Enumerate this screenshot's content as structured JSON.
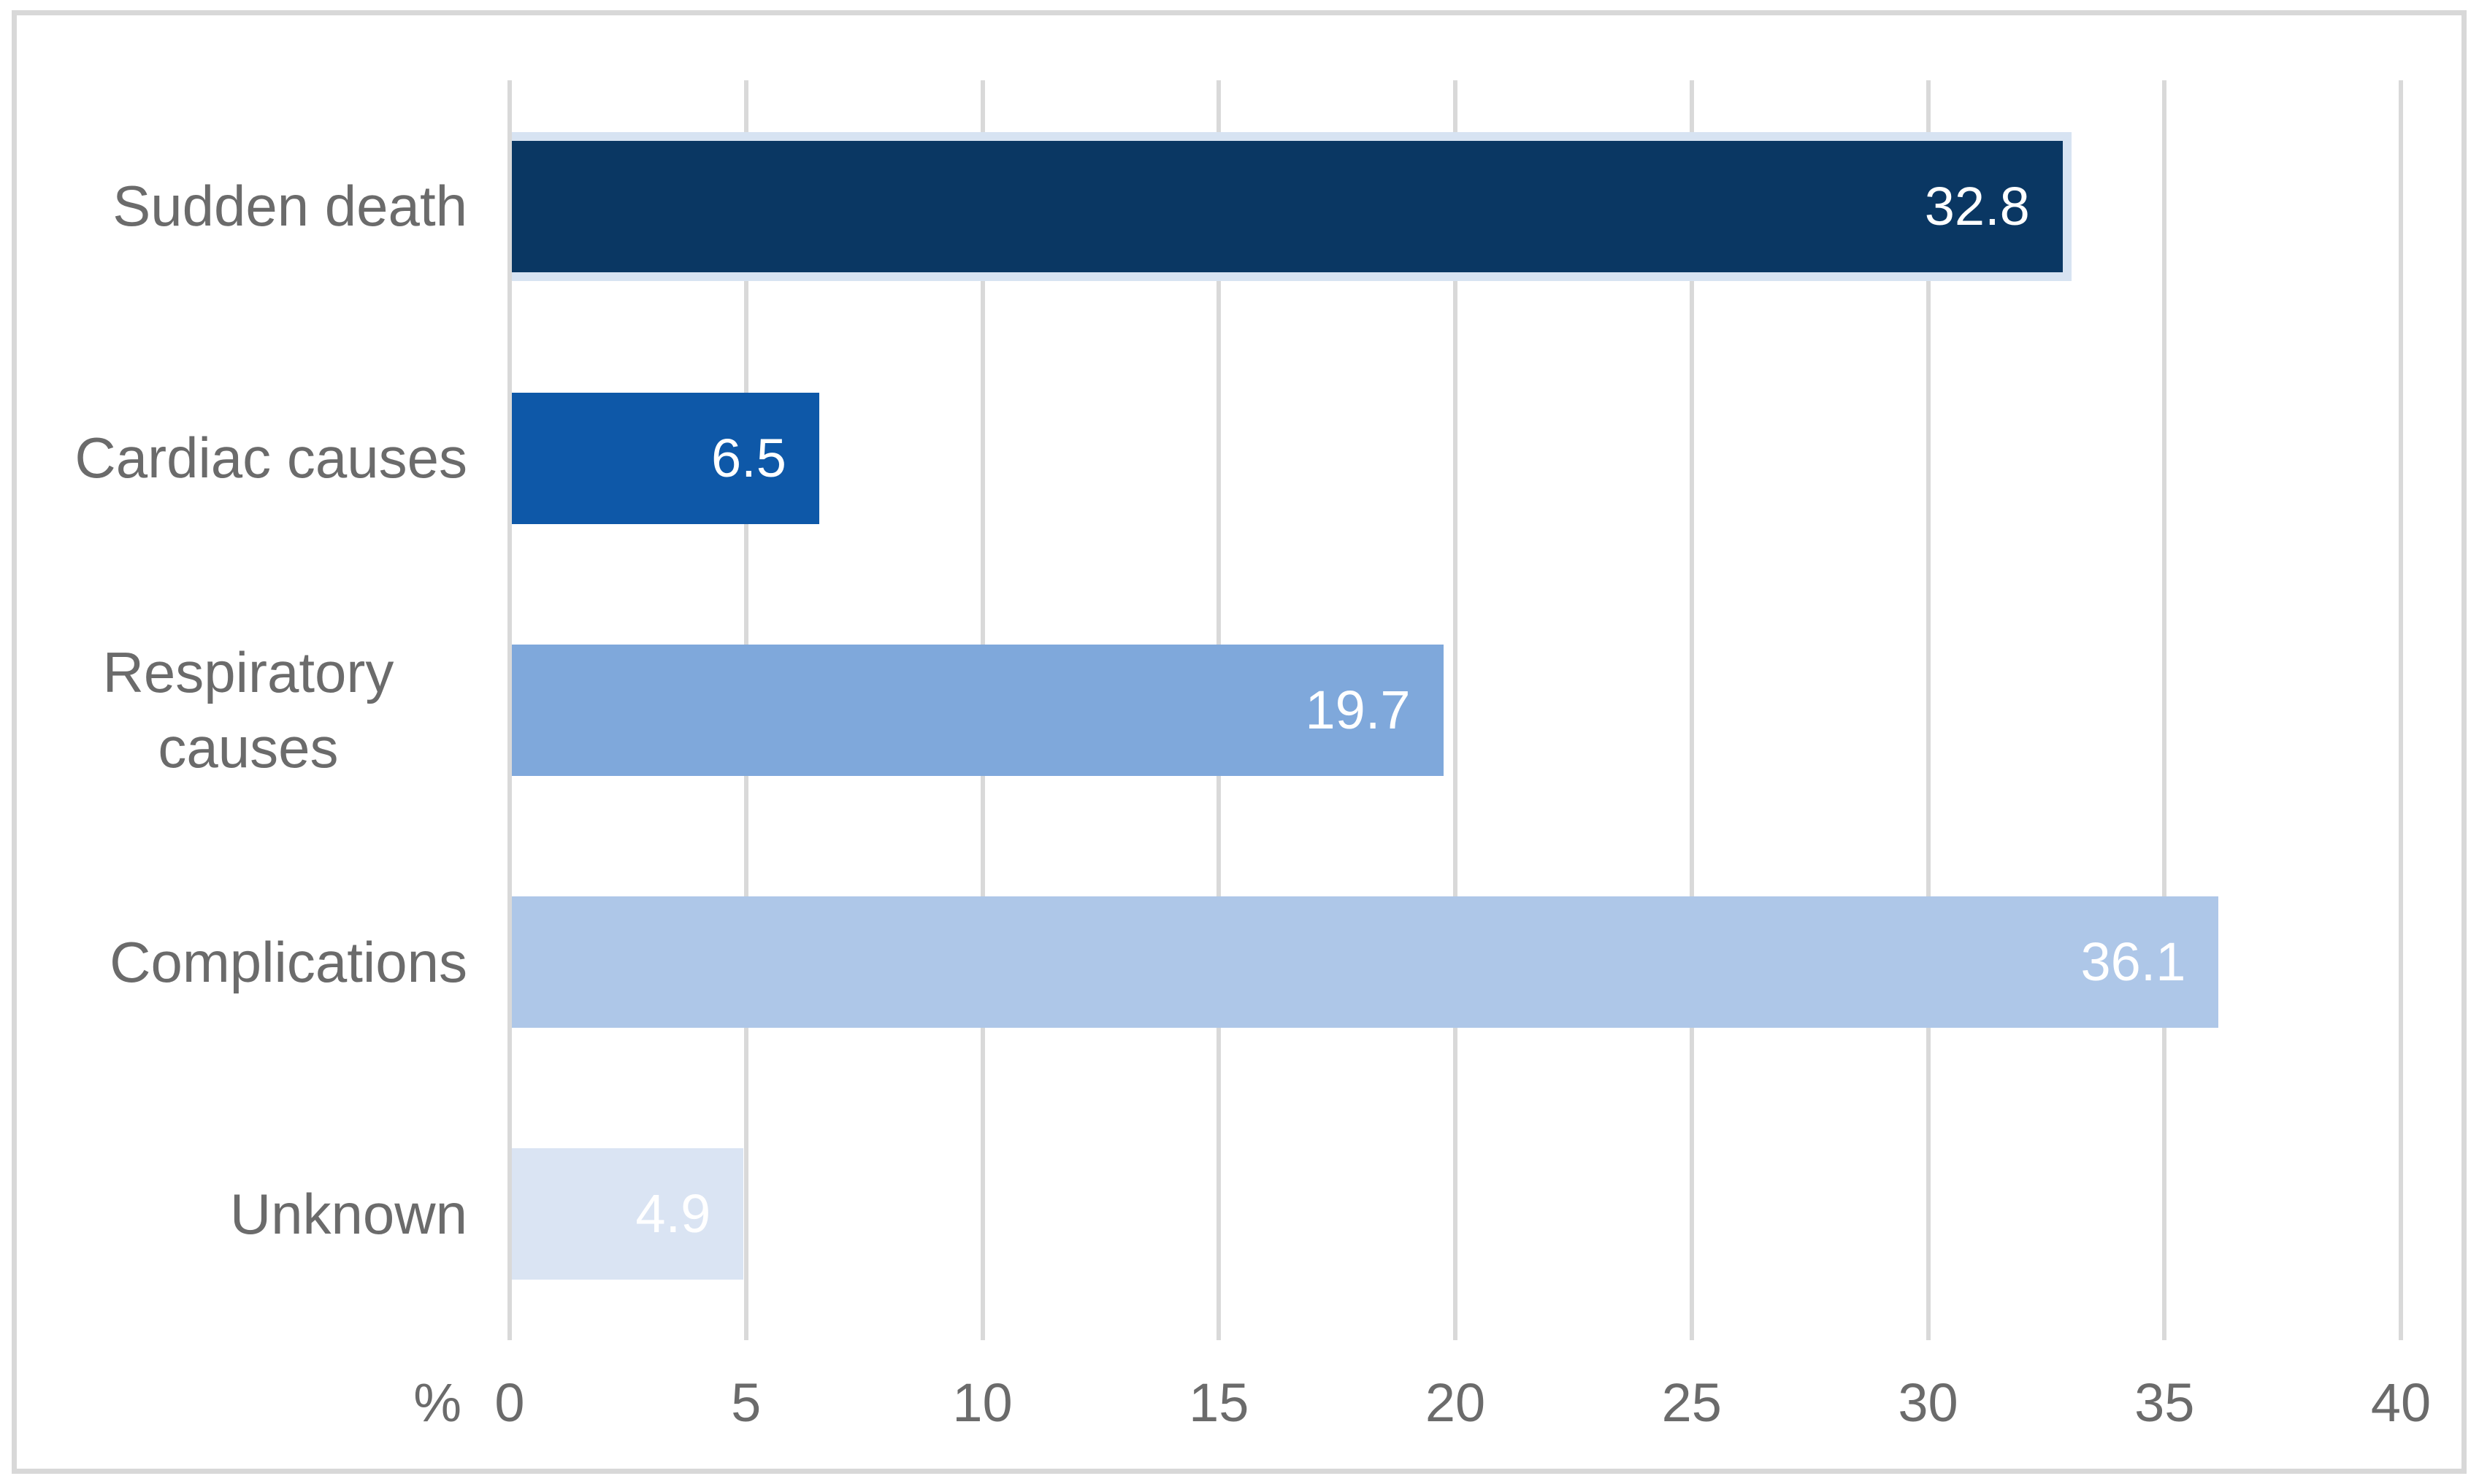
{
  "chart_data": {
    "type": "bar",
    "orientation": "horizontal",
    "title": "",
    "categories": [
      "Sudden death",
      "Cardiac causes",
      "Respiratory causes",
      "Complications",
      "Unknown"
    ],
    "values": [
      32.8,
      6.5,
      19.7,
      36.1,
      4.9
    ],
    "value_labels": [
      "32.8",
      "6.5",
      "19.7",
      "36.1",
      "4.9"
    ],
    "bar_colors": [
      "#0a3763",
      "#0e58a8",
      "#7fa8db",
      "#aec7e8",
      "#dae4f3"
    ],
    "highlighted_bar_index": 0,
    "highlight_border_color": "#d7e3f2",
    "xlabel": "%",
    "ylabel": "",
    "xlim": [
      0,
      40
    ],
    "xticks": [
      "0",
      "5",
      "10",
      "15",
      "20",
      "25",
      "30",
      "35",
      "40"
    ],
    "grid": true,
    "legend": null,
    "colors": {
      "gridline": "#d9d9d9",
      "axis_text": "#6b6b6b",
      "data_label_text": "#ffffff",
      "frame_border": "#d8d8d8",
      "background": "#ffffff"
    }
  }
}
